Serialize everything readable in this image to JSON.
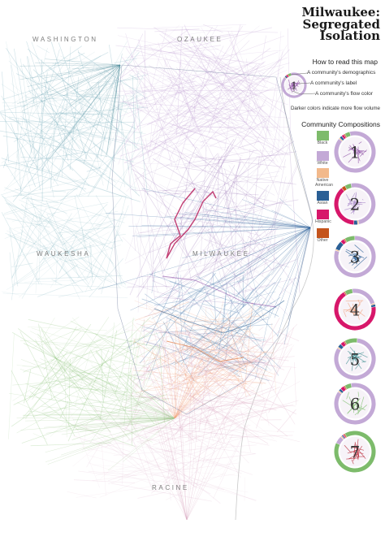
{
  "title": [
    "Milwaukee:",
    "Segregated",
    "Isolation"
  ],
  "how_to_read": "How to read this map",
  "annotations": {
    "demographics": "A community's demographics",
    "label": "A community's label",
    "flow_color": "A community's flow color",
    "darker_note": "Darker colors indicate more flow volume"
  },
  "community_compositions_title": "Community Compositions",
  "counties": {
    "washington": "WASHINGTON",
    "ozaukee": "OZAUKEE",
    "waukesha": "WAUKESHA",
    "milwaukee": "MILWAUKEE",
    "racine": "RACINE"
  },
  "legend": [
    {
      "label": "Black",
      "color": "#7dbb6b"
    },
    {
      "label": "White",
      "color": "#c3a9d6"
    },
    {
      "label": "Native American",
      "color": "#f2b98b"
    },
    {
      "label": "Asian",
      "color": "#2a5f95"
    },
    {
      "label": "Hispanic",
      "color": "#d7176a"
    },
    {
      "label": "Other",
      "color": "#c4541c"
    }
  ],
  "sample_community": {
    "label": "1",
    "flow_color": "#8e4fa6"
  },
  "communities": [
    {
      "label": "1",
      "flow_color": "#8e4fa6"
    },
    {
      "label": "2",
      "flow_color": "#a888c9"
    },
    {
      "label": "3",
      "flow_color": "#1c5690"
    },
    {
      "label": "4",
      "flow_color": "#f0a07a"
    },
    {
      "label": "5",
      "flow_color": "#3d8d90"
    },
    {
      "label": "6",
      "flow_color": "#7ebf6d"
    },
    {
      "label": "7",
      "flow_color": "#b51d2e"
    }
  ]
}
